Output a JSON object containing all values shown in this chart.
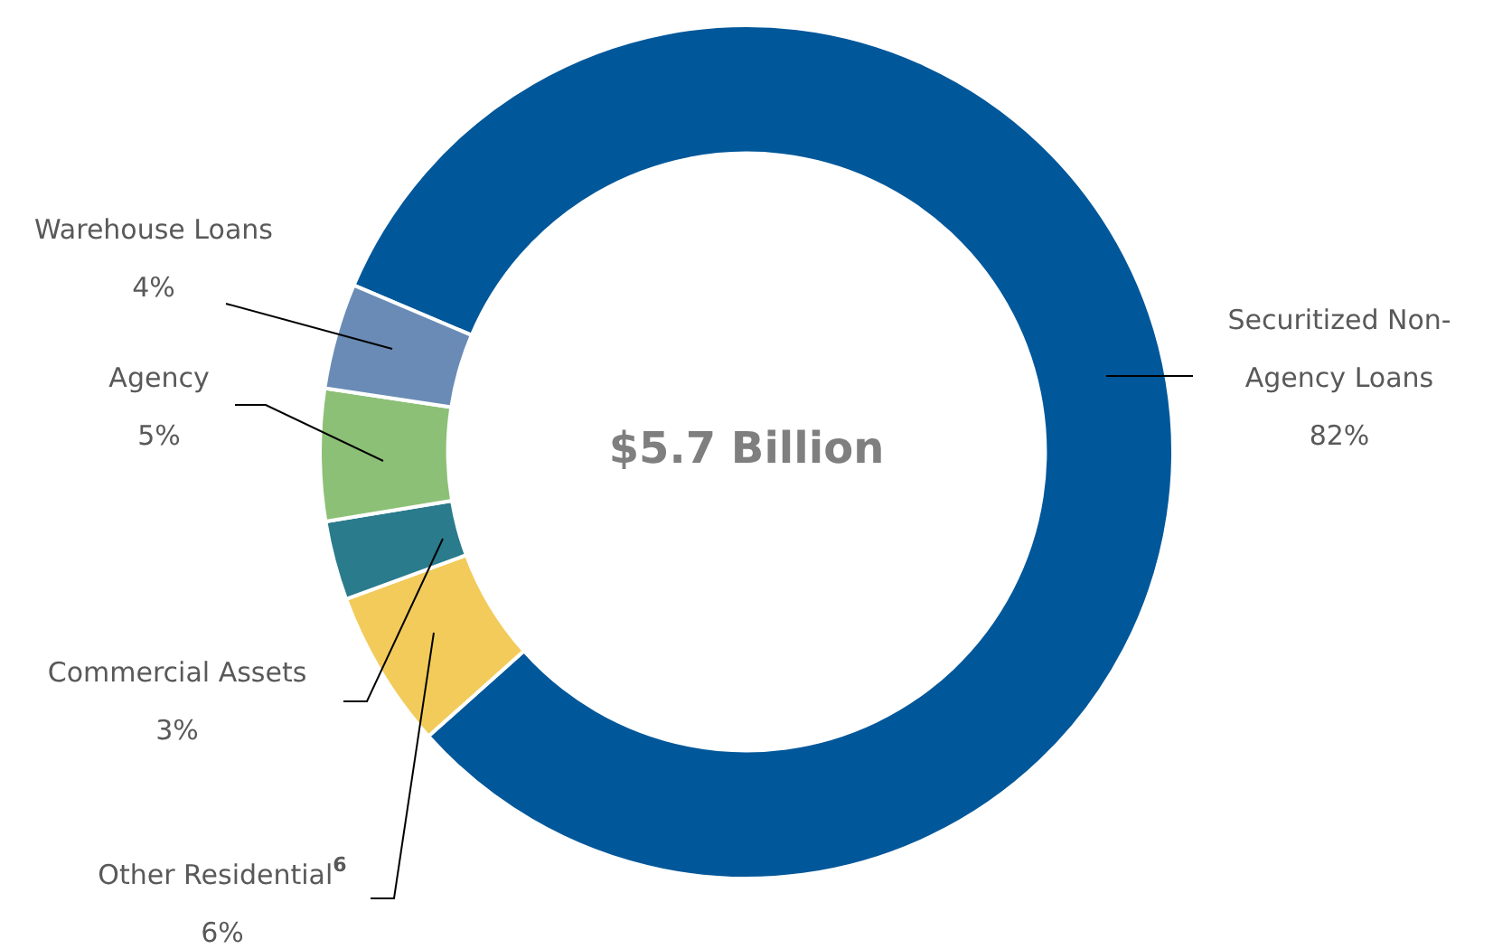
{
  "chart_data": {
    "type": "donut",
    "categories": [
      "Securitized Non-Agency Loans",
      "Other Residential$^{6}$",
      "Commercial Assets",
      "Agency",
      "Warehouse Loans"
    ],
    "values": [
      82,
      6,
      3,
      5,
      4
    ],
    "colors": [
      "#00579a",
      "#f2cb5a",
      "#2a7b8c",
      "#8cc076",
      "#6a8bb5"
    ],
    "value_labels": [
      "82%",
      "6%",
      "3%",
      "5%",
      "4%"
    ],
    "annotations": [
      "$5.7 Billion"
    ],
    "legend": false
  }
}
